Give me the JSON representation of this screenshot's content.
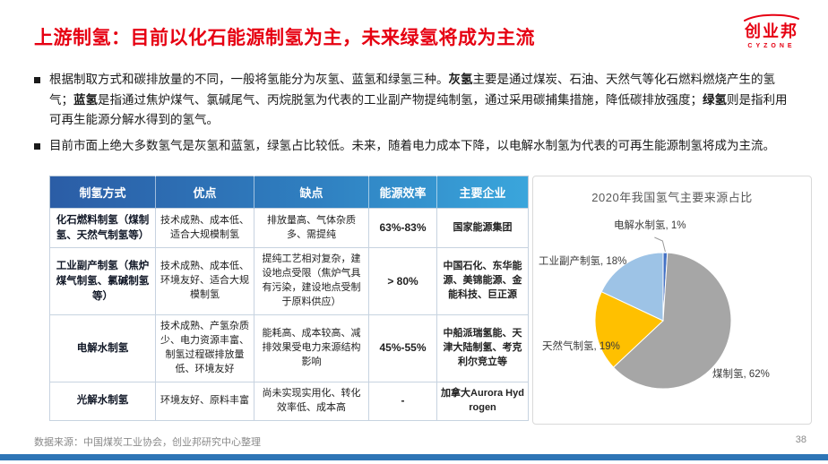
{
  "header": {
    "title": "上游制氢：目前以化石能源制氢为主，未来绿氢将成为主流",
    "logo_name": "创业邦",
    "logo_subtitle": "CYZONE"
  },
  "bullets": [
    {
      "segments": [
        {
          "t": "根据制取方式和碳排放量的不同，一般将氢能分为灰氢、蓝氢和绿氢三种。",
          "b": false
        },
        {
          "t": "灰氢",
          "b": true
        },
        {
          "t": "主要是通过煤炭、石油、天然气等化石燃料燃烧产生的氢气；",
          "b": false
        },
        {
          "t": "蓝氢",
          "b": true
        },
        {
          "t": "是指通过焦炉煤气、氯碱尾气、丙烷脱氢为代表的工业副产物提纯制氢，通过采用碳捕集措施，降低碳排放强度；",
          "b": false
        },
        {
          "t": "绿氢",
          "b": true
        },
        {
          "t": "则是指利用可再生能源分解水得到的氢气。",
          "b": false
        }
      ]
    },
    {
      "segments": [
        {
          "t": "目前市面上绝大多数氢气是灰氢和蓝氢，绿氢占比较低。未来，随着电力成本下降，以电解水制氢为代表的可再生能源制氢将成为主流。",
          "b": false
        }
      ]
    }
  ],
  "table": {
    "headers": [
      "制氢方式",
      "优点",
      "缺点",
      "能源效率",
      "主要企业"
    ],
    "rows": [
      [
        "化石燃料制氢（煤制氢、天然气制氢等）",
        "技术成熟、成本低、适合大规模制氢",
        "排放量高、气体杂质多、需提纯",
        "63%-83%",
        "国家能源集团"
      ],
      [
        "工业副产制氢（焦炉煤气制氢、氯碱制氢等）",
        "技术成熟、成本低、环境友好、适合大规模制氢",
        "提纯工艺相对复杂，建设地点受限（焦炉气具有污染，建设地点受制于原料供应）",
        "> 80%",
        "中国石化、东华能源、美锦能源、金能科技、巨正源"
      ],
      [
        "电解水制氢",
        "技术成熟、产氢杂质少、电力资源丰富、制氢过程碳排放量低、环境友好",
        "能耗高、成本较高、减排效果受电力来源结构影响",
        "45%-55%",
        "中船派瑞氢能、天津大陆制氢、考克利尔竞立等"
      ],
      [
        "光解水制氢",
        "环境友好、原料丰富",
        "尚未实现实用化、转化效率低、成本高",
        "-",
        "加拿大Aurora Hydrogen"
      ]
    ]
  },
  "chart_data": {
    "type": "pie",
    "title": "2020年我国氢气主要来源占比",
    "slices": [
      {
        "label": "电解水制氢",
        "value": 1,
        "color": "#4472C4"
      },
      {
        "label": "煤制氢",
        "value": 62,
        "color": "#A6A6A6"
      },
      {
        "label": "天然气制氢",
        "value": 19,
        "color": "#FFC000"
      },
      {
        "label": "工业副产制氢",
        "value": 18,
        "color": "#9DC3E6"
      }
    ],
    "start_angle_deg": -90,
    "direction": "clockwise",
    "labels": "outside",
    "legend": "none"
  },
  "footer": {
    "source": "数据来源：中国煤炭工业协会，创业邦研究中心整理",
    "page": "38"
  },
  "colors": {
    "title_red": "#E60012",
    "header_gradient_start": "#2B5DA6",
    "header_gradient_end": "#3AA6DC",
    "bottom_bar_blue": "#2E75B6"
  }
}
